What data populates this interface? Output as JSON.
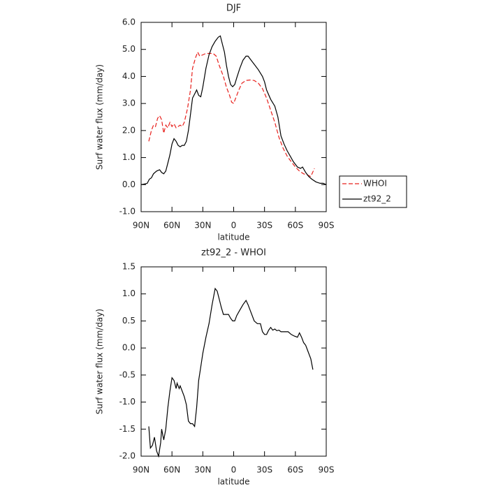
{
  "chart_data": [
    {
      "type": "line",
      "title": "DJF",
      "xlabel": "latitude",
      "ylabel": "Surf water flux (mm/day)",
      "xlim": [
        90,
        -90
      ],
      "xticks": [
        {
          "value": 90,
          "label": "90N"
        },
        {
          "value": 60,
          "label": "60N"
        },
        {
          "value": 30,
          "label": "30N"
        },
        0,
        {
          "value": -30,
          "label": "30S"
        },
        {
          "value": -60,
          "label": "60S"
        },
        {
          "value": -90,
          "label": "90S"
        }
      ],
      "ylim": [
        -1,
        6
      ],
      "yticks": [
        {
          "value": -1,
          "label": "-1.0"
        },
        {
          "value": 0,
          "label": "0.0"
        },
        {
          "value": 1,
          "label": "1.0"
        },
        {
          "value": 2,
          "label": "2.0"
        },
        {
          "value": 3,
          "label": "3.0"
        },
        {
          "value": 4,
          "label": "4.0"
        },
        {
          "value": 5,
          "label": "5.0"
        },
        {
          "value": 6,
          "label": "6.0"
        }
      ],
      "legend": "right",
      "series": [
        {
          "name": "WHOI",
          "color": "#e8201c",
          "dash": true,
          "x": [
            82.5,
            80,
            78,
            76,
            74,
            72,
            70,
            68,
            66,
            64,
            62,
            60,
            58,
            56,
            54,
            52,
            50,
            48,
            45,
            42,
            40,
            37,
            35,
            33,
            30,
            27,
            24,
            20,
            17,
            14,
            10,
            7,
            4,
            2,
            0,
            -2,
            -5,
            -8,
            -12,
            -16,
            -20,
            -24,
            -28,
            -32,
            -36,
            -40,
            -44,
            -48,
            -52,
            -56,
            -60,
            -64,
            -68,
            -72,
            -75,
            -78.5
          ],
          "values": [
            1.6,
            2.0,
            2.2,
            2.15,
            2.45,
            2.55,
            2.4,
            1.9,
            2.2,
            2.1,
            2.3,
            2.15,
            2.25,
            2.1,
            2.15,
            2.2,
            2.15,
            2.3,
            2.8,
            3.5,
            4.3,
            4.7,
            4.9,
            4.75,
            4.8,
            4.85,
            4.85,
            4.85,
            4.75,
            4.4,
            4.0,
            3.6,
            3.3,
            3.05,
            3.0,
            3.2,
            3.5,
            3.75,
            3.85,
            3.87,
            3.85,
            3.75,
            3.55,
            3.2,
            2.75,
            2.3,
            1.75,
            1.35,
            1.05,
            0.85,
            0.65,
            0.5,
            0.4,
            0.35,
            0.3,
            0.6
          ]
        },
        {
          "name": "zt92_2",
          "color": "#000000",
          "dash": false,
          "x": [
            90,
            87,
            84,
            82,
            80,
            78,
            75,
            72,
            70,
            68,
            66,
            64,
            62,
            60,
            58,
            56,
            54,
            52,
            50,
            48,
            46,
            44,
            42,
            40,
            38,
            36,
            34,
            32,
            30,
            27,
            24,
            21,
            18,
            15,
            13,
            11,
            9,
            7,
            5,
            3,
            1,
            -1,
            -3,
            -6,
            -9,
            -12,
            -14,
            -17,
            -20,
            -24,
            -28,
            -30,
            -32,
            -36,
            -40,
            -43,
            -46,
            -49,
            -52,
            -55,
            -58,
            -62,
            -65,
            -67,
            -70,
            -73,
            -76,
            -80,
            -84,
            -87,
            -90
          ],
          "values": [
            0.0,
            0.02,
            0.05,
            0.2,
            0.25,
            0.4,
            0.5,
            0.55,
            0.45,
            0.4,
            0.5,
            0.8,
            1.1,
            1.5,
            1.7,
            1.6,
            1.45,
            1.4,
            1.45,
            1.45,
            1.6,
            2.0,
            2.6,
            3.2,
            3.35,
            3.5,
            3.3,
            3.25,
            3.6,
            4.3,
            4.8,
            5.1,
            5.3,
            5.45,
            5.5,
            5.2,
            4.9,
            4.4,
            4.0,
            3.7,
            3.62,
            3.7,
            3.95,
            4.3,
            4.6,
            4.75,
            4.75,
            4.6,
            4.45,
            4.25,
            4.0,
            3.8,
            3.5,
            3.15,
            2.9,
            2.5,
            1.8,
            1.5,
            1.25,
            1.05,
            0.85,
            0.65,
            0.6,
            0.65,
            0.45,
            0.3,
            0.2,
            0.1,
            0.05,
            0.05,
            0.0
          ]
        }
      ]
    },
    {
      "type": "line",
      "title": "zt92_2 - WHOI",
      "xlabel": "latitude",
      "ylabel": "Surf water flux (mm/day)",
      "xlim": [
        90,
        -90
      ],
      "xticks": [
        {
          "value": 90,
          "label": "90N"
        },
        {
          "value": 60,
          "label": "60N"
        },
        {
          "value": 30,
          "label": "30N"
        },
        0,
        {
          "value": -30,
          "label": "30S"
        },
        {
          "value": -60,
          "label": "60S"
        },
        {
          "value": -90,
          "label": "90S"
        }
      ],
      "ylim": [
        -2,
        1.5
      ],
      "yticks": [
        {
          "value": -2,
          "label": "-2.0"
        },
        -1.5,
        {
          "value": -1,
          "label": "-1.0"
        },
        -0.5,
        {
          "value": 0,
          "label": "0.0"
        },
        0.5,
        {
          "value": 1,
          "label": "1.0"
        },
        1.5
      ],
      "series": [
        {
          "color": "#000000",
          "dash": false,
          "x": [
            82.5,
            81,
            79,
            77,
            75,
            73,
            71,
            70,
            68,
            66,
            64,
            62,
            60,
            58,
            56,
            55,
            53,
            52,
            50,
            48,
            46,
            44,
            42,
            40,
            38,
            36,
            34,
            32,
            30,
            27,
            24,
            21,
            18,
            16,
            14,
            12,
            10,
            7,
            5,
            3,
            1,
            -1,
            -3,
            -6,
            -9,
            -12,
            -14,
            -17,
            -20,
            -23,
            -26,
            -28,
            -30,
            -32,
            -34,
            -36,
            -38,
            -40,
            -42,
            -44,
            -46,
            -50,
            -53,
            -56,
            -59,
            -62,
            -64,
            -66,
            -68,
            -70,
            -72,
            -75,
            -77
          ],
          "values": [
            -1.45,
            -1.85,
            -1.8,
            -1.65,
            -1.9,
            -2.0,
            -1.75,
            -1.5,
            -1.7,
            -1.5,
            -1.1,
            -0.8,
            -0.55,
            -0.6,
            -0.75,
            -0.65,
            -0.75,
            -0.7,
            -0.8,
            -0.9,
            -1.05,
            -1.35,
            -1.4,
            -1.4,
            -1.45,
            -1.1,
            -0.6,
            -0.35,
            -0.1,
            0.2,
            0.45,
            0.8,
            1.1,
            1.05,
            0.9,
            0.75,
            0.62,
            0.62,
            0.62,
            0.55,
            0.5,
            0.5,
            0.6,
            0.7,
            0.8,
            0.88,
            0.8,
            0.65,
            0.5,
            0.45,
            0.45,
            0.3,
            0.25,
            0.25,
            0.33,
            0.38,
            0.33,
            0.35,
            0.32,
            0.33,
            0.3,
            0.3,
            0.3,
            0.25,
            0.22,
            0.2,
            0.28,
            0.2,
            0.1,
            0.05,
            -0.05,
            -0.2,
            -0.4
          ]
        }
      ]
    }
  ]
}
